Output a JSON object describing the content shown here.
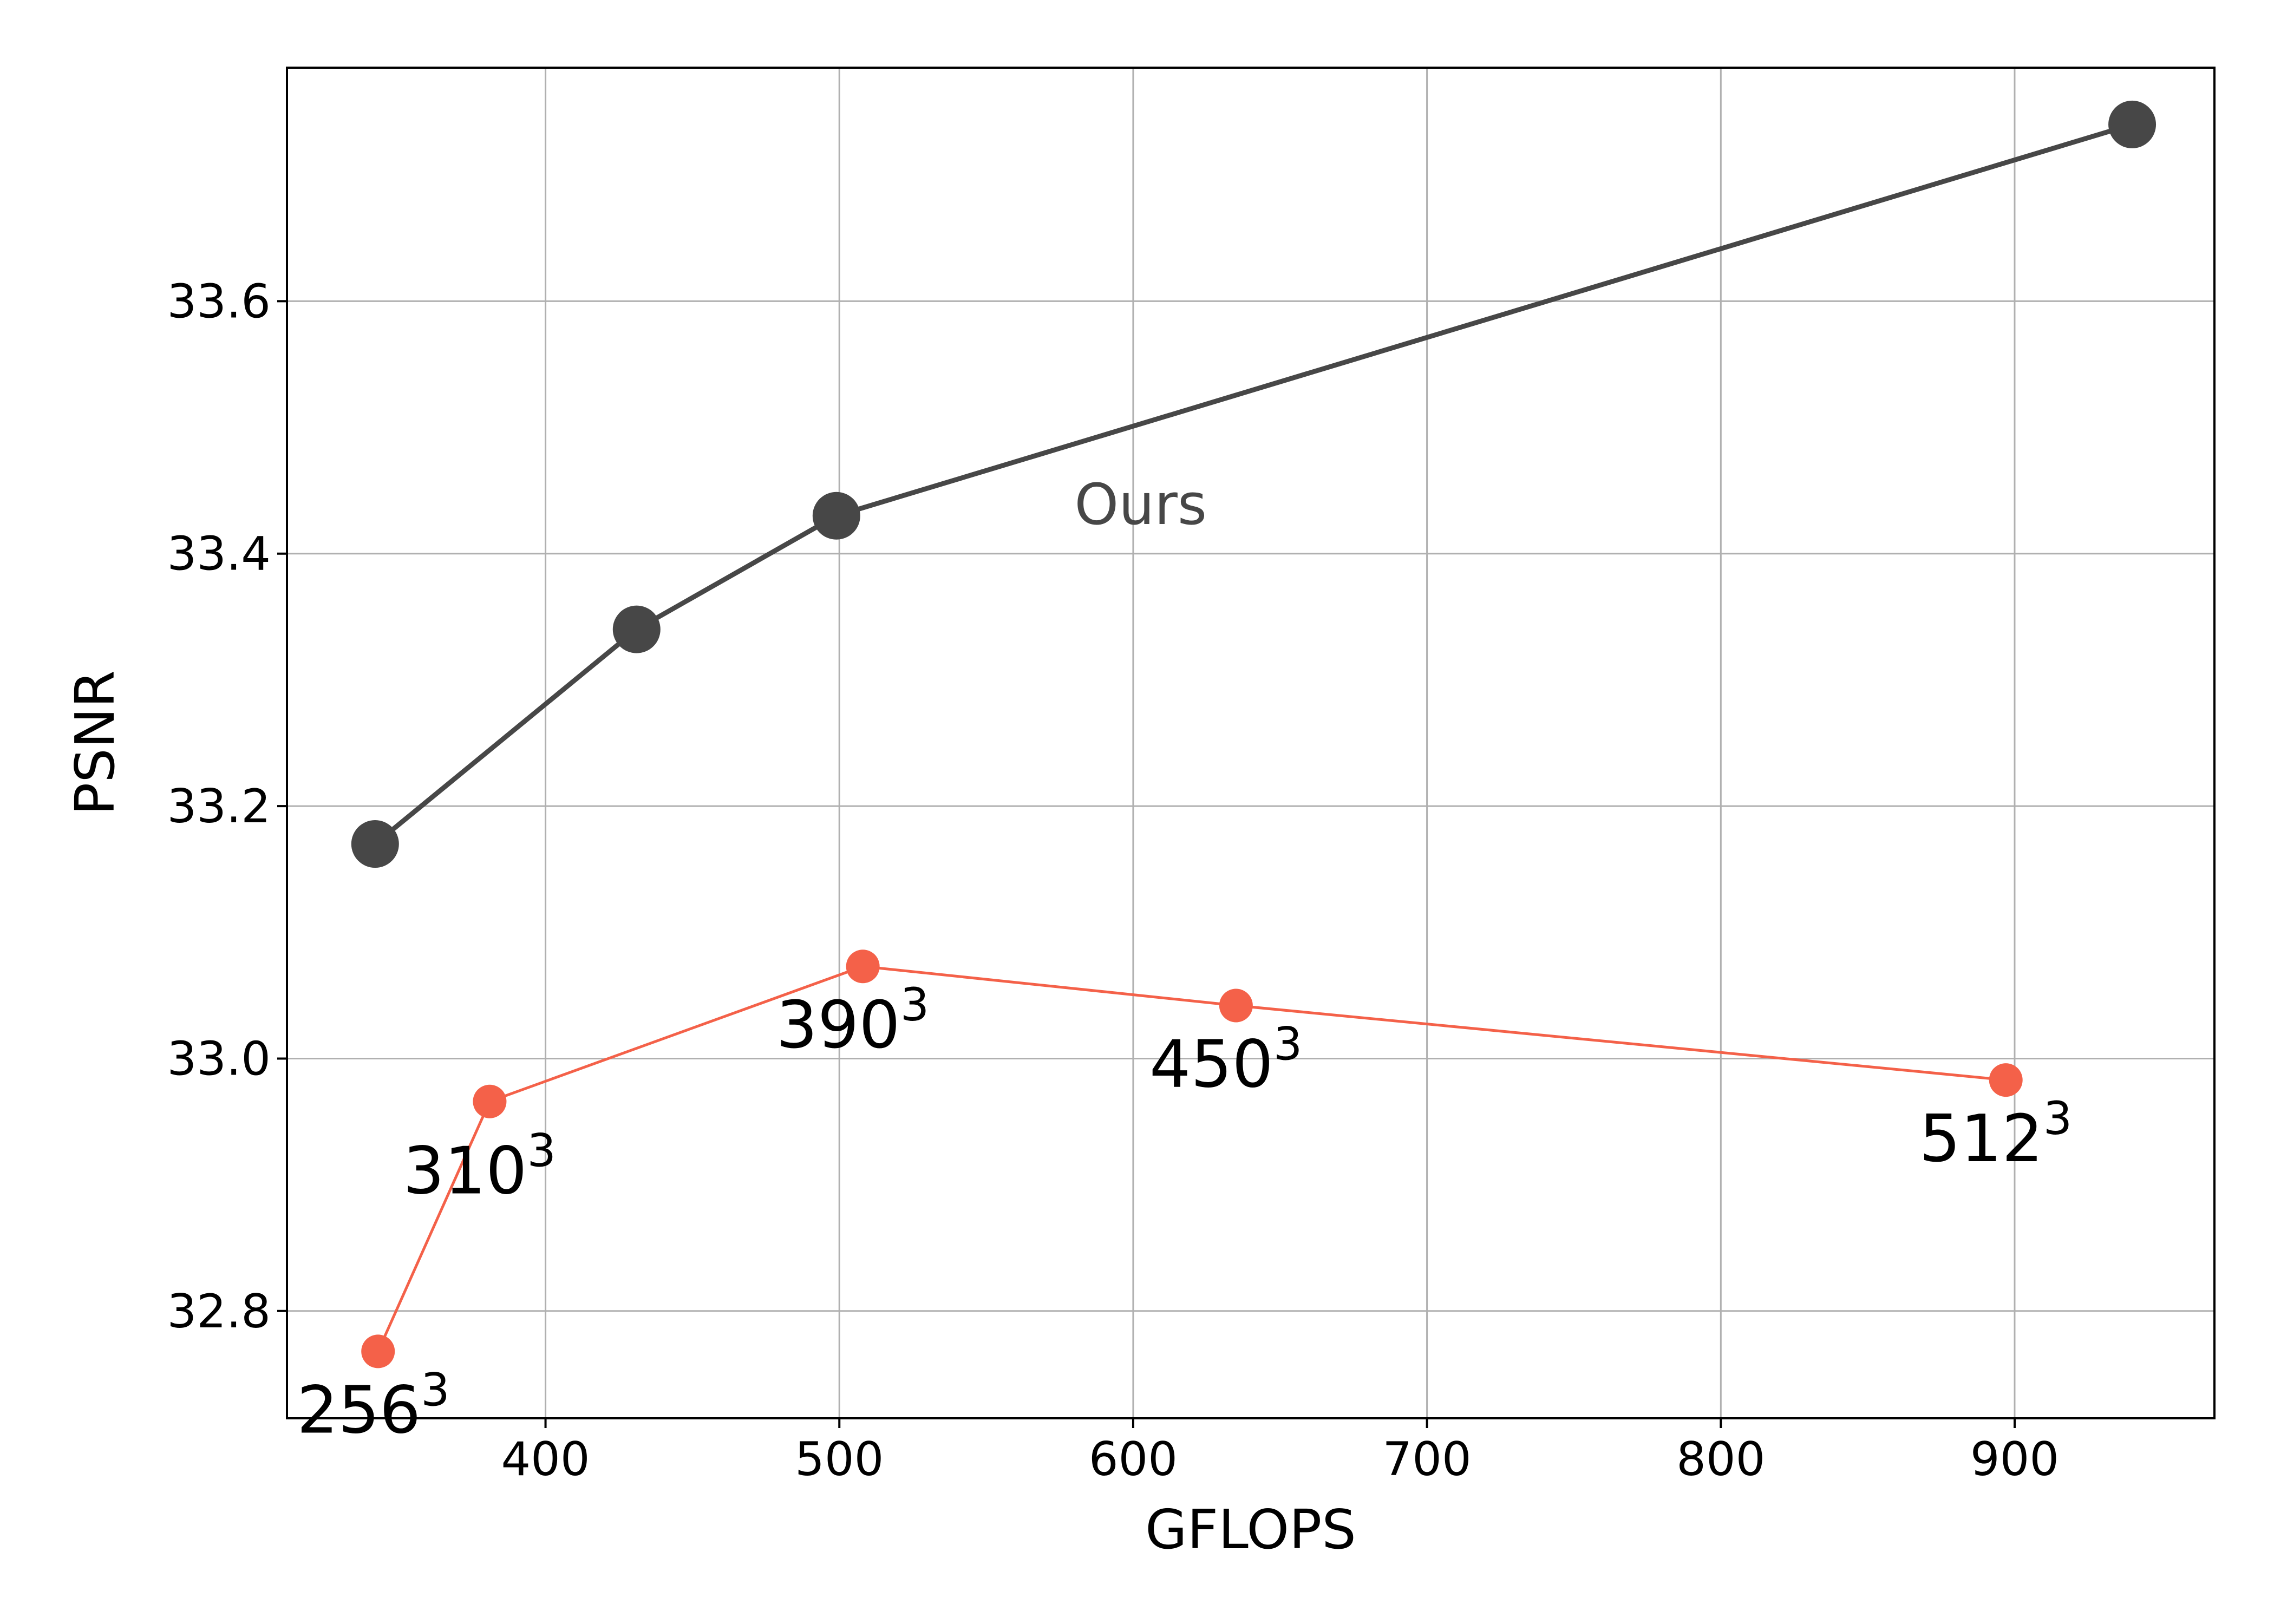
{
  "chart_data": {
    "type": "line",
    "xlabel": "GFLOPS",
    "ylabel": "PSNR",
    "xlim": [
      312,
      968
    ],
    "ylim": [
      32.715,
      33.785
    ],
    "xticks": [
      400,
      500,
      600,
      700,
      800,
      900
    ],
    "yticks": [
      32.8,
      33.0,
      33.2,
      33.4,
      33.6
    ],
    "xtick_labels": [
      "400",
      "500",
      "600",
      "700",
      "800",
      "900"
    ],
    "ytick_labels": [
      "32.8",
      "33.0",
      "33.2",
      "33.4",
      "33.6"
    ],
    "grid": true,
    "series": [
      {
        "name": "Ours",
        "color": "#474747",
        "points": [
          {
            "x": 342,
            "y": 33.17
          },
          {
            "x": 431,
            "y": 33.34
          },
          {
            "x": 499,
            "y": 33.43
          },
          {
            "x": 940,
            "y": 33.74
          }
        ]
      },
      {
        "color": "#F46149",
        "points": [
          {
            "x": 343,
            "y": 32.768,
            "label": "256",
            "sup": "3"
          },
          {
            "x": 381,
            "y": 32.966,
            "label": "310",
            "sup": "3"
          },
          {
            "x": 508,
            "y": 33.073,
            "label": "390",
            "sup": "3"
          },
          {
            "x": 635,
            "y": 33.042,
            "label": "450",
            "sup": "3"
          },
          {
            "x": 897,
            "y": 32.983,
            "label": "512",
            "sup": "3"
          }
        ]
      }
    ]
  }
}
